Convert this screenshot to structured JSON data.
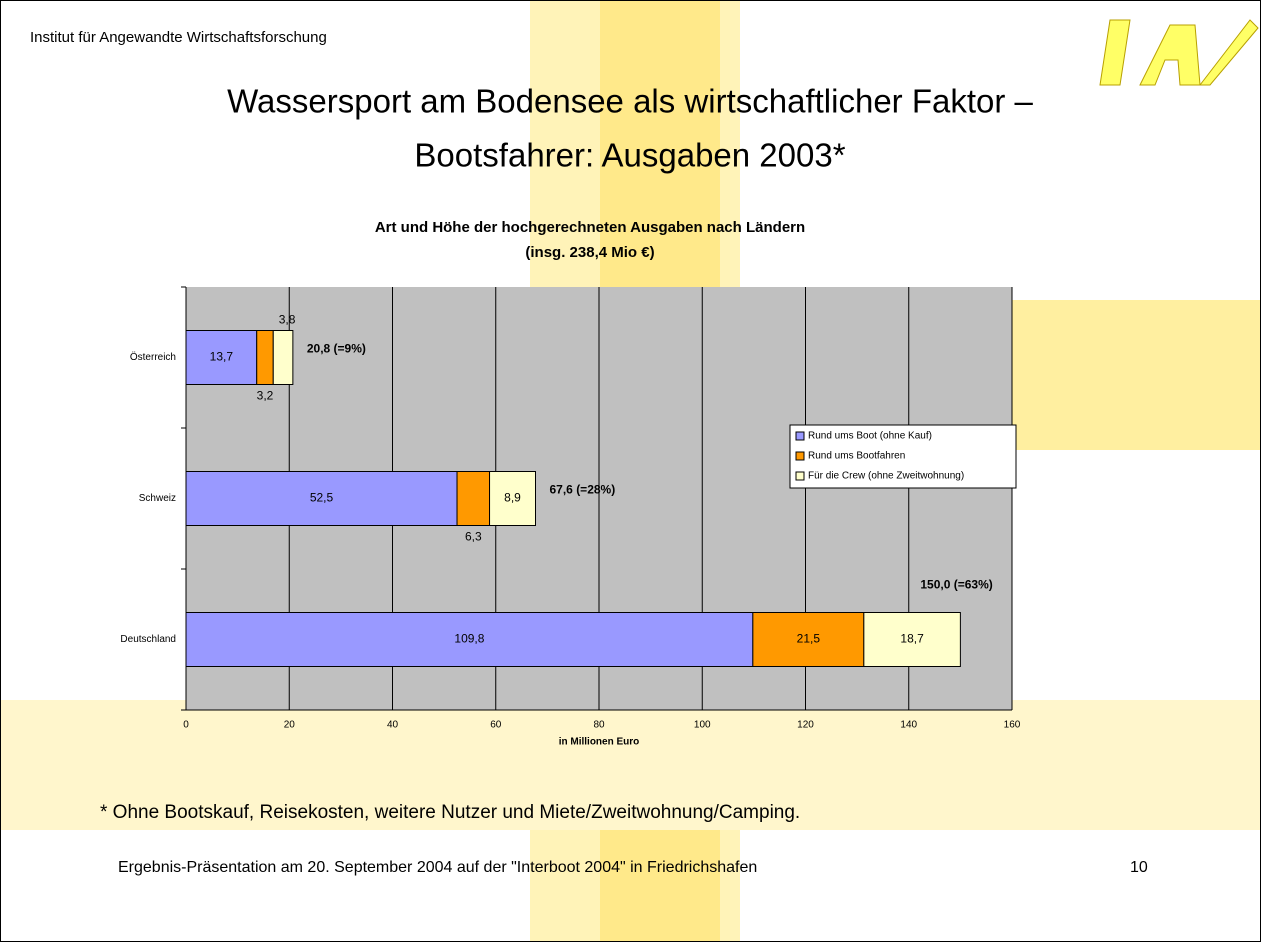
{
  "header": "Institut für Angewandte Wirtschaftsforschung",
  "slide_title": [
    "Wassersport am Bodensee als wirtschaftlicher Faktor –",
    "Bootsfahrer: Ausgaben 2003*"
  ],
  "footnote": "* Ohne Bootskauf, Reisekosten, weitere Nutzer und Miete/Zweitwohnung/Camping.",
  "footer": "Ergebnis-Präsentation am 20. September 2004 auf der \"Interboot 2004\" in Friedrichshafen",
  "page_number": "10",
  "chart_data": {
    "type": "stacked-barh",
    "title": "Art und Höhe der hochgerechneten Ausgaben nach Ländern",
    "subtitle": "(insg. 238,4 Mio €)",
    "xlabel": "in Millionen Euro",
    "categories": [
      "Österreich",
      "Schweiz",
      "Deutschland"
    ],
    "series": [
      {
        "name": "Rund ums Boot (ohne Kauf)",
        "color": "#9999ff",
        "values": [
          13.7,
          52.5,
          109.8
        ],
        "value_labels": [
          "13,7",
          "52,5",
          "109,8"
        ]
      },
      {
        "name": "Rund ums Bootfahren",
        "color": "#ff9900",
        "values": [
          3.2,
          6.3,
          21.5
        ],
        "value_labels": [
          "3,2",
          "6,3",
          "21,5"
        ]
      },
      {
        "name": "Für die Crew (ohne Zweitwohnung)",
        "color": "#ffffcc",
        "values": [
          3.8,
          8.9,
          18.7
        ],
        "value_labels": [
          "3,8",
          "8,9",
          "18,7"
        ]
      }
    ],
    "annotations": [
      "20,8 (=9%)",
      "67,6 (=28%)",
      "150,0 (=63%)"
    ],
    "xlim": [
      0,
      160
    ],
    "xticks": [
      0,
      20,
      40,
      60,
      80,
      100,
      120,
      140,
      160
    ],
    "grid": true,
    "legend": "right"
  }
}
